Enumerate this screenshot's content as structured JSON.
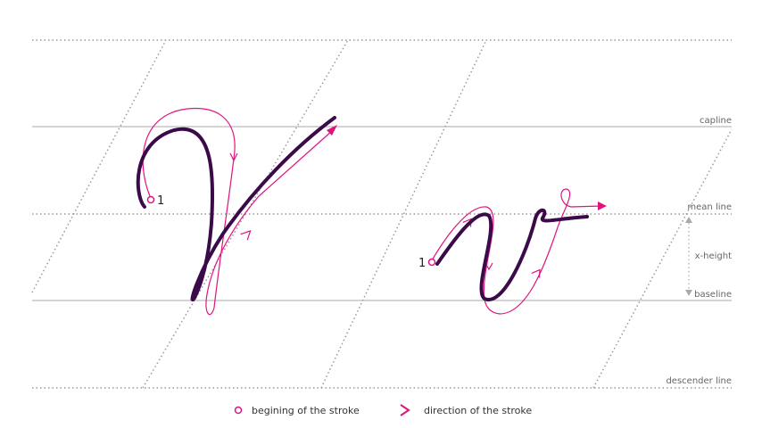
{
  "guides": {
    "capline": "capline",
    "mean_line": "mean line",
    "x_height": "x-height",
    "baseline": "baseline",
    "descender_line": "descender line"
  },
  "letters": [
    {
      "start_label": "1"
    },
    {
      "start_label": "1"
    }
  ],
  "legend": {
    "start": "begining of the stroke",
    "direction": "direction of the stroke"
  }
}
